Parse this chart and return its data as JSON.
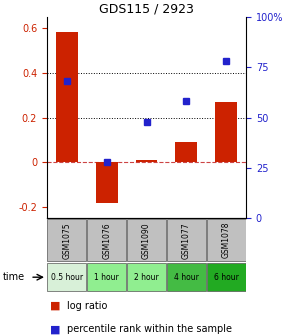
{
  "title": "GDS115 / 2923",
  "samples": [
    "GSM1075",
    "GSM1076",
    "GSM1090",
    "GSM1077",
    "GSM1078"
  ],
  "time_labels": [
    "0.5 hour",
    "1 hour",
    "2 hour",
    "4 hour",
    "6 hour"
  ],
  "time_colors": [
    "#d8f0d8",
    "#90ee90",
    "#90ee90",
    "#44bb44",
    "#22aa22"
  ],
  "log_ratio": [
    0.58,
    -0.18,
    0.01,
    0.09,
    0.27
  ],
  "percentile_rank": [
    68,
    28,
    48,
    58,
    78
  ],
  "bar_color": "#cc2200",
  "dot_color": "#2222cc",
  "ylim_left": [
    -0.25,
    0.65
  ],
  "ylim_right": [
    0,
    100
  ],
  "yticks_left": [
    -0.2,
    0.0,
    0.2,
    0.4,
    0.6
  ],
  "ytick_labels_left": [
    "-0.2",
    "0",
    "0.2",
    "0.4",
    "0.6"
  ],
  "yticks_right": [
    0,
    25,
    50,
    75,
    100
  ],
  "ytick_labels_right": [
    "0",
    "25",
    "50",
    "75",
    "100%"
  ],
  "header_bg": "#c0c0c0",
  "legend_log_ratio": "log ratio",
  "legend_percentile": "percentile rank within the sample",
  "time_label": "time"
}
